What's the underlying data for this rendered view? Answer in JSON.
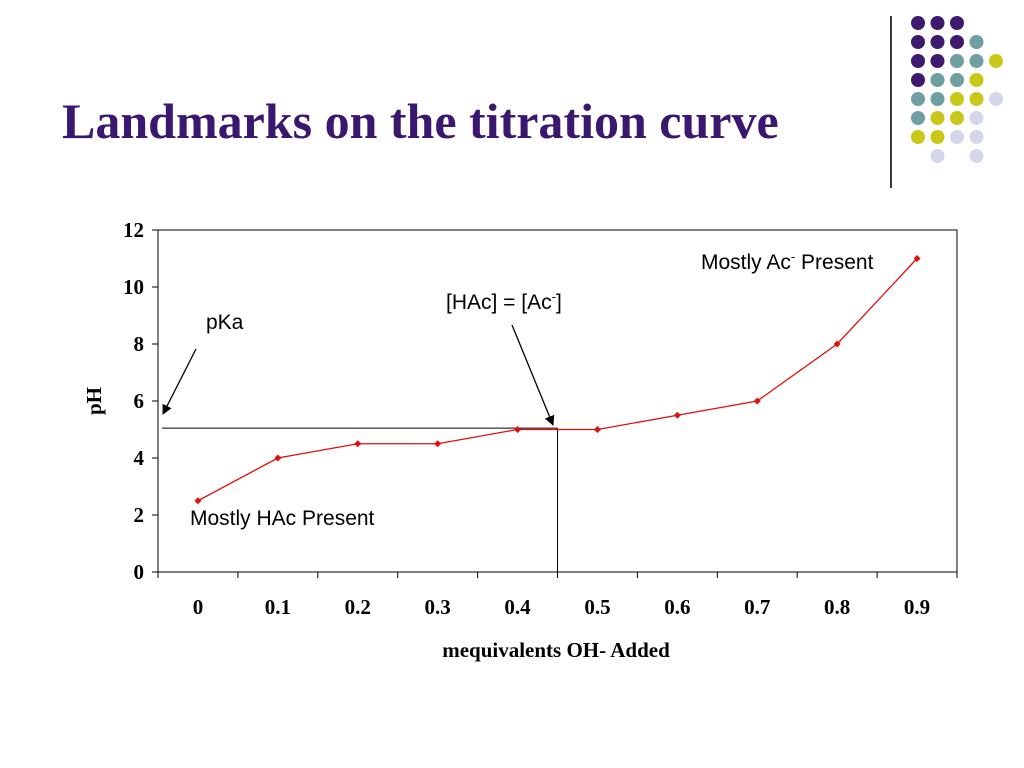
{
  "slide": {
    "title": "Landmarks on the titration curve"
  },
  "decor": {
    "dot_colors": {
      "purple": "#3d1a6e",
      "teal": "#6f9fa0",
      "yellow": "#c9c81a",
      "lavender": "#d6d6ea"
    },
    "dot_grid": [
      [
        "purple",
        "purple",
        "purple",
        null,
        null
      ],
      [
        "purple",
        "purple",
        "purple",
        "teal",
        null
      ],
      [
        "purple",
        "purple",
        "teal",
        "teal",
        "yellow"
      ],
      [
        "purple",
        "teal",
        "teal",
        "yellow",
        null
      ],
      [
        "teal",
        "teal",
        "yellow",
        "yellow",
        "lavender"
      ],
      [
        "teal",
        "yellow",
        "yellow",
        "lavender",
        null
      ],
      [
        "yellow",
        "yellow",
        "lavender",
        "lavender",
        null
      ],
      [
        null,
        "lavender",
        null,
        "lavender",
        null
      ]
    ]
  },
  "chart_data": {
    "type": "line",
    "xlabel": "mequivalents OH- Added",
    "ylabel": "pH",
    "categories": [
      "0",
      "0.1",
      "0.2",
      "0.3",
      "0.4",
      "0.5",
      "0.6",
      "0.7",
      "0.8",
      "0.9"
    ],
    "series": [
      {
        "values": [
          2.5,
          4,
          4.5,
          4.5,
          5,
          5,
          5.5,
          6,
          8,
          11
        ],
        "color": "#e01010"
      }
    ],
    "ylim": [
      0,
      12
    ],
    "yticks": [
      "0",
      "2",
      "4",
      "6",
      "8",
      "10",
      "12"
    ],
    "grid": false,
    "legend": "none",
    "reference_lines": {
      "horizontal_y": 5.05,
      "vertical_x_category": 4.5
    },
    "annotations": {
      "pka": "pKa",
      "equal": "[HAc] = [Ac",
      "equal_sup": "-",
      "equal_end": "]",
      "ac_prefix": "Mostly Ac",
      "ac_sup": "-",
      "ac_suffix": " Present",
      "hac": "Mostly HAc Present"
    }
  }
}
